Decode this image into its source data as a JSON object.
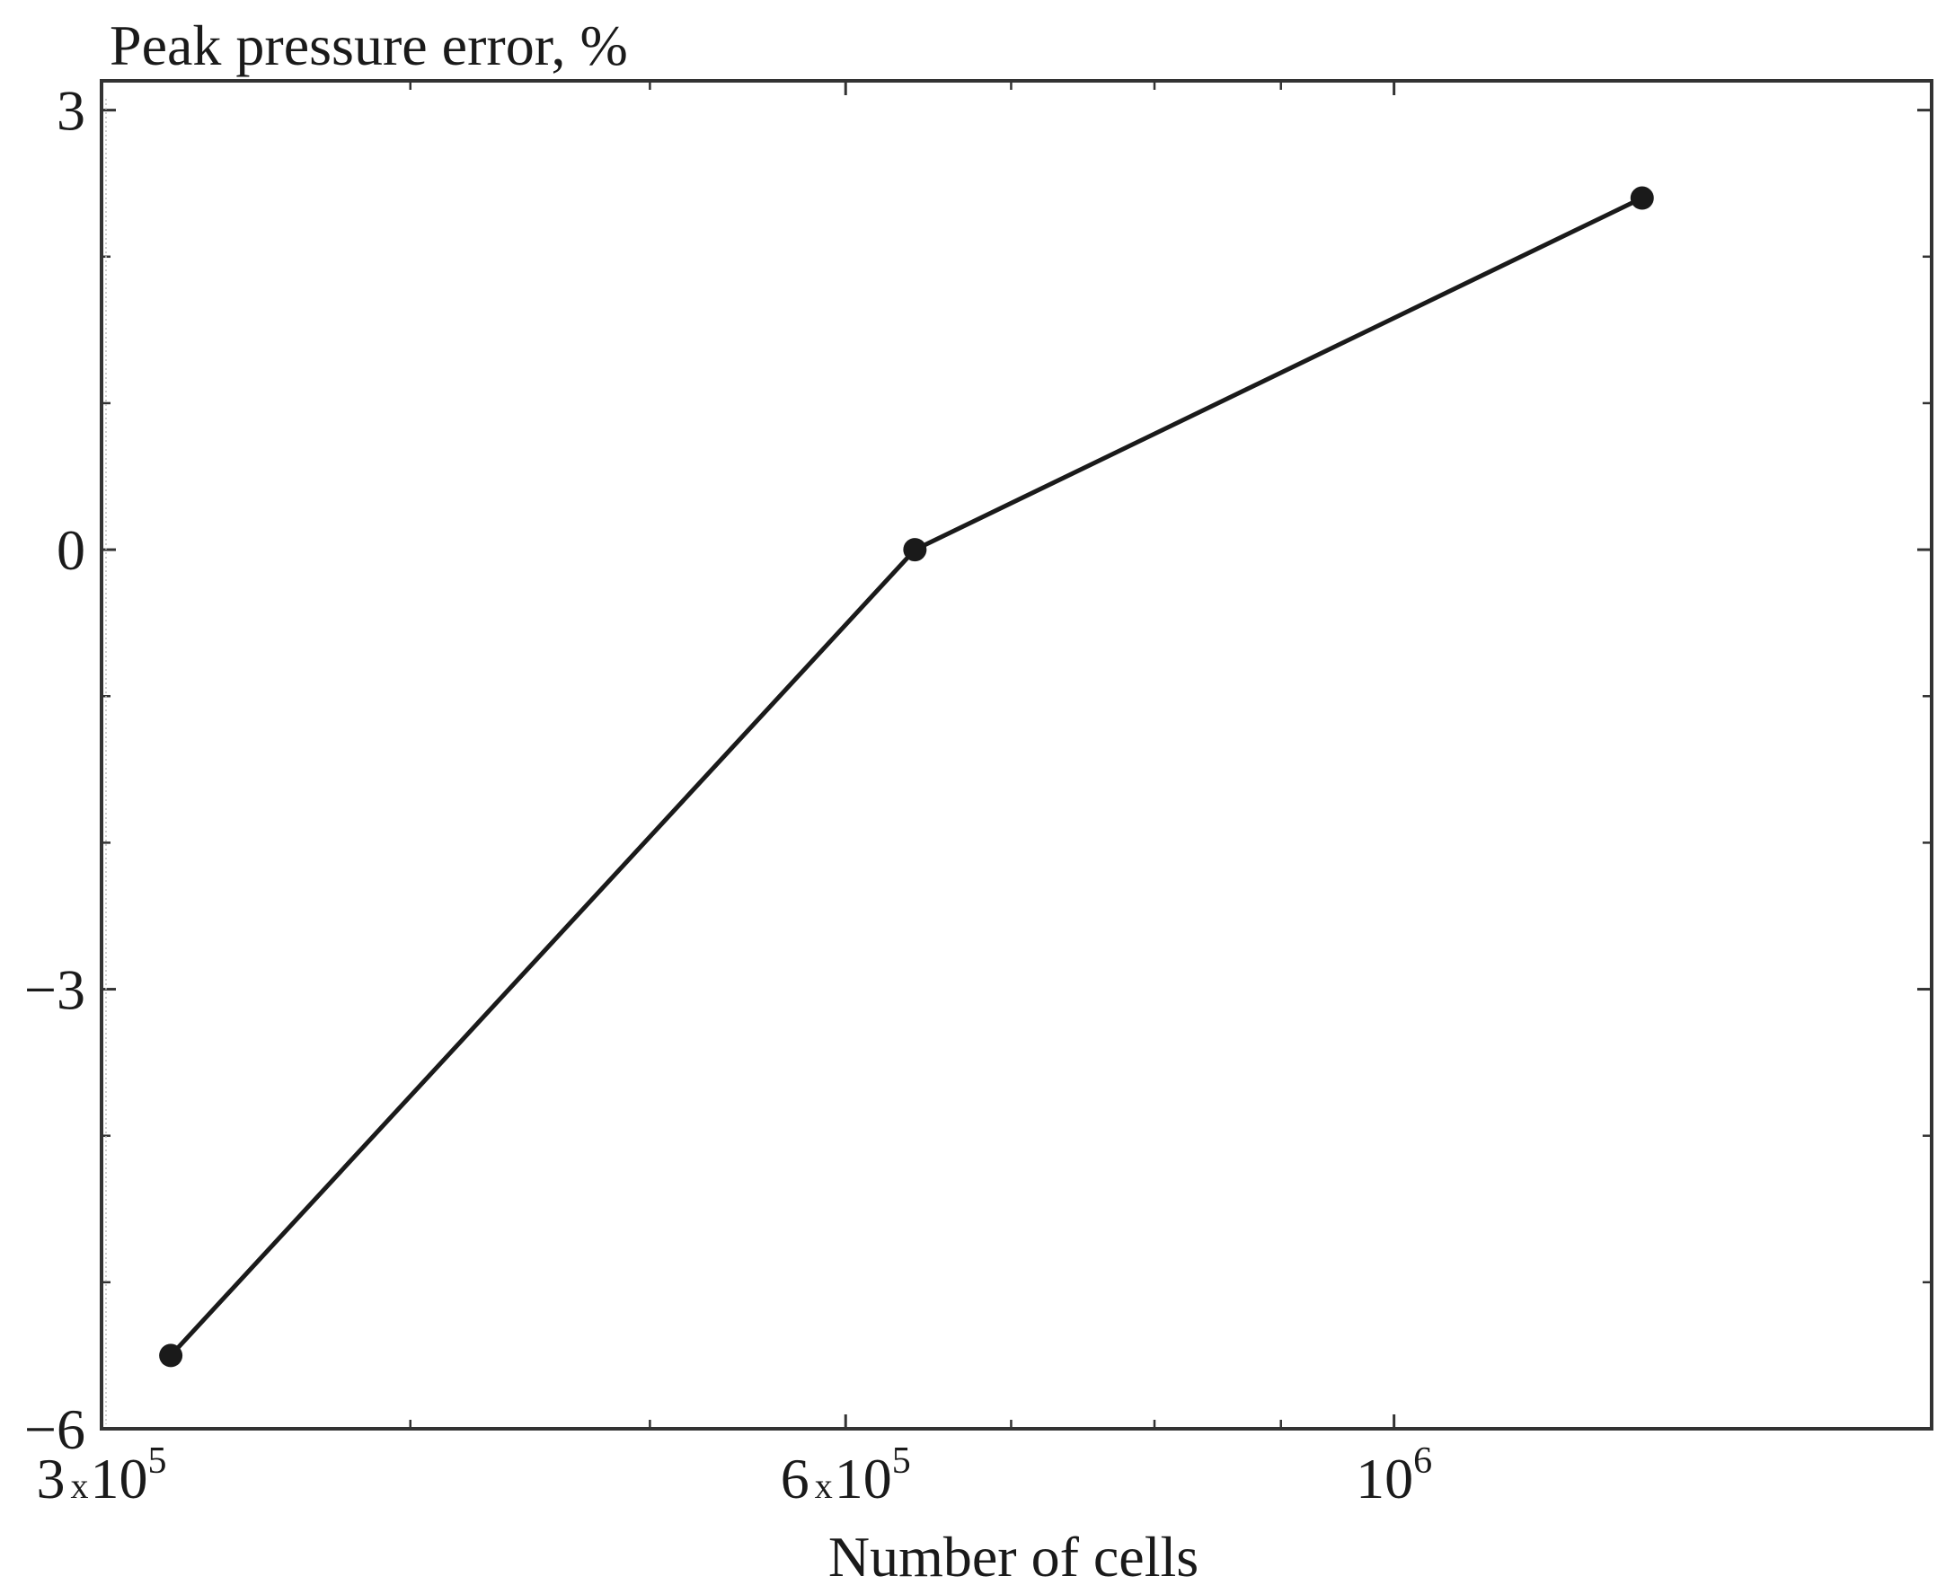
{
  "chart_data": {
    "type": "line",
    "title": "",
    "ylabel": "Peak pressure error, %",
    "xlabel": "Number of cells",
    "x_scale": "log",
    "xlim": [
      300000,
      1650000
    ],
    "ylim": [
      -6.0,
      3.2
    ],
    "x_ticks": [
      {
        "value": 300000,
        "mantissa": "3",
        "times": "x",
        "base": "10",
        "exp": "5"
      },
      {
        "value": 600000,
        "mantissa": "6",
        "times": "x",
        "base": "10",
        "exp": "5"
      },
      {
        "value": 1000000,
        "mantissa": "",
        "times": "",
        "base": "10",
        "exp": "6"
      }
    ],
    "x_minor_ticks": [
      400000,
      500000,
      700000,
      800000,
      900000
    ],
    "y_ticks": [
      {
        "value": 3,
        "label": "3"
      },
      {
        "value": 0,
        "label": "0"
      },
      {
        "value": -3,
        "label": "−3"
      },
      {
        "value": -6,
        "label": "−6"
      }
    ],
    "y_minor_ticks": [
      2,
      1,
      -1,
      -2,
      -4,
      -5
    ],
    "grid": false,
    "series": [
      {
        "color": "#1a1a1a",
        "marker": "circle",
        "x": [
          320000,
          640000,
          1260000
        ],
        "y": [
          -5.5,
          0.0,
          2.4
        ]
      }
    ]
  }
}
